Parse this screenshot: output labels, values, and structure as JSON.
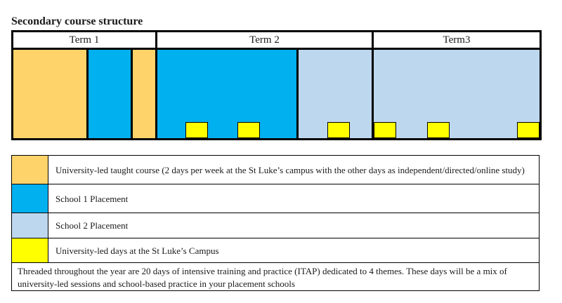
{
  "title": "Secondary course structure",
  "terms": [
    {
      "label": "Term 1"
    },
    {
      "label": "Term 2"
    },
    {
      "label": "Term3"
    }
  ],
  "colors": {
    "university_taught": "#fdd36a",
    "school1": "#00b0ef",
    "school2": "#bdd7ee",
    "university_days": "#ffff00"
  },
  "legend": {
    "items": [
      {
        "text": "University-led taught course (2 days per week at the St Luke’s campus with the other days as independent/directed/online study)"
      },
      {
        "text": "School 1 Placement"
      },
      {
        "text": "School 2  Placement"
      },
      {
        "text": "University-led days at the St Luke’s Campus"
      }
    ],
    "note": "Threaded throughout the year are 20 days of intensive training and practice (ITAP) dedicated to 4 themes.  These days will be a mix of university-led sessions and school-based practice in your placement schools"
  }
}
